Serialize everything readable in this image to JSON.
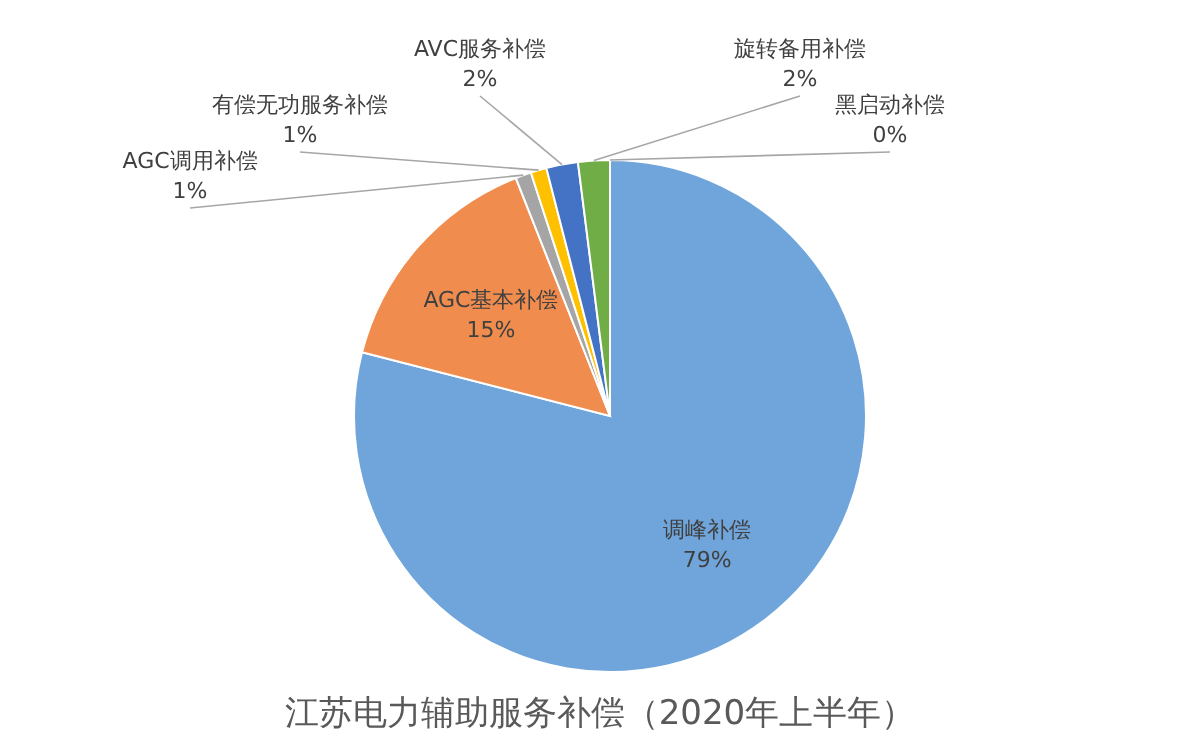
{
  "chart_data": {
    "type": "pie",
    "title": "江苏电力辅助服务补偿（2020年上半年）",
    "categories": [
      "调峰补偿",
      "AGC基本补偿",
      "AGC调用补偿",
      "有偿无功服务补偿",
      "AVC服务补偿",
      "旋转备用补偿",
      "黑启动补偿"
    ],
    "values": [
      79,
      15,
      1,
      1,
      2,
      2,
      0
    ],
    "colors": [
      "#6fa5db",
      "#f08d4e",
      "#a5a5a5",
      "#ffc000",
      "#4472c4",
      "#70ad47",
      "#264478"
    ],
    "value_labels": [
      "79%",
      "15%",
      "1%",
      "1%",
      "2%",
      "2%",
      "0%"
    ]
  }
}
